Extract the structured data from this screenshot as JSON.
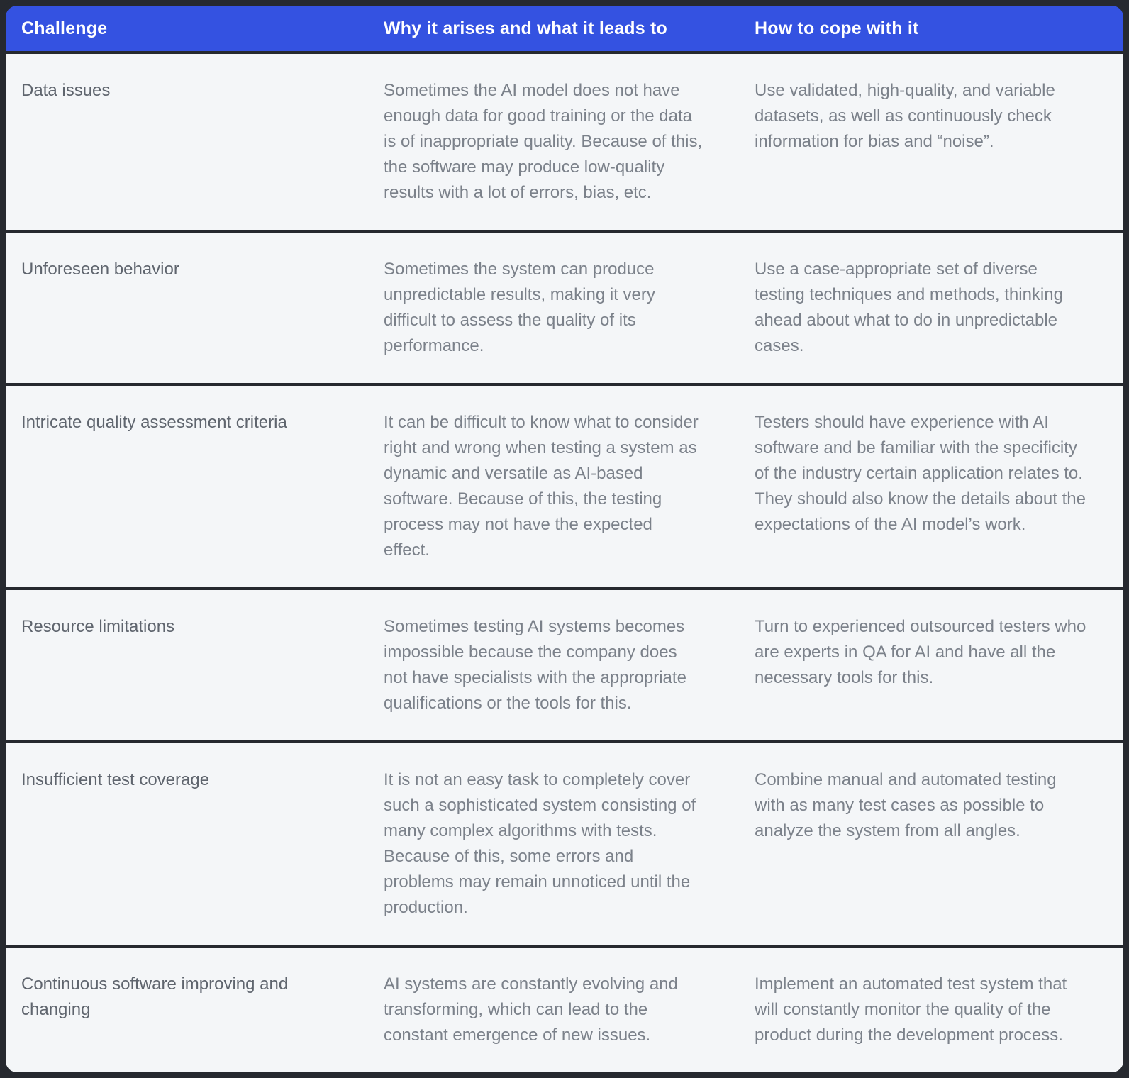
{
  "colors": {
    "header_background": "#3452e1",
    "header_text": "#ffffff",
    "row_background": "#f4f6f8",
    "separator": "#26292f",
    "challenge_text": "#5f656e",
    "body_text": "#7b818a"
  },
  "table": {
    "columns": [
      {
        "label": "Challenge"
      },
      {
        "label": "Why it arises and what it leads to"
      },
      {
        "label": "How to cope with it"
      }
    ],
    "rows": [
      {
        "challenge": "Data issues",
        "why": "Sometimes the AI model does not have enough data for good training or the data is of inappropriate quality. Because of this, the software may produce low-quality results with a lot of errors, bias, etc.",
        "how": "Use validated, high-quality, and variable datasets, as well as continuously check information for bias and “noise”."
      },
      {
        "challenge": "Unforeseen behavior",
        "why": "Sometimes the system can produce unpredictable results, making it very difficult to assess the quality of its performance.",
        "how": "Use a case-appropriate set of diverse testing techniques and methods, thinking ahead about what to do in unpredictable cases."
      },
      {
        "challenge": "Intricate quality assessment criteria",
        "why": "It can be difficult to know what to consider right and wrong when testing a system as dynamic and versatile as AI-based software. Because of this, the testing process may not have the expected effect.",
        "how": "Testers should have experience with AI software and be familiar with the specificity of the industry certain application relates to. They should also know the details about the expectations of the AI model’s work."
      },
      {
        "challenge": "Resource limitations",
        "why": "Sometimes testing AI systems becomes impossible because the company does not have specialists with the appropriate qualifications or the tools for this.",
        "how": "Turn to experienced outsourced testers who are experts in QA for AI and have all the necessary tools for this."
      },
      {
        "challenge": "Insufficient test coverage",
        "why": "It is not an easy task to completely cover such a sophisticated system consisting of many complex algorithms with tests. Because of this, some errors and problems may remain unnoticed until the production.",
        "how": "Combine manual and automated testing with as many test cases as possible to analyze the system from all angles."
      },
      {
        "challenge": "Continuous software improving and changing",
        "why": "AI systems are constantly evolving and transforming, which can lead to the constant emergence of new issues.",
        "how": "Implement an automated test system that will constantly monitor the quality of the product during the development process."
      }
    ]
  }
}
